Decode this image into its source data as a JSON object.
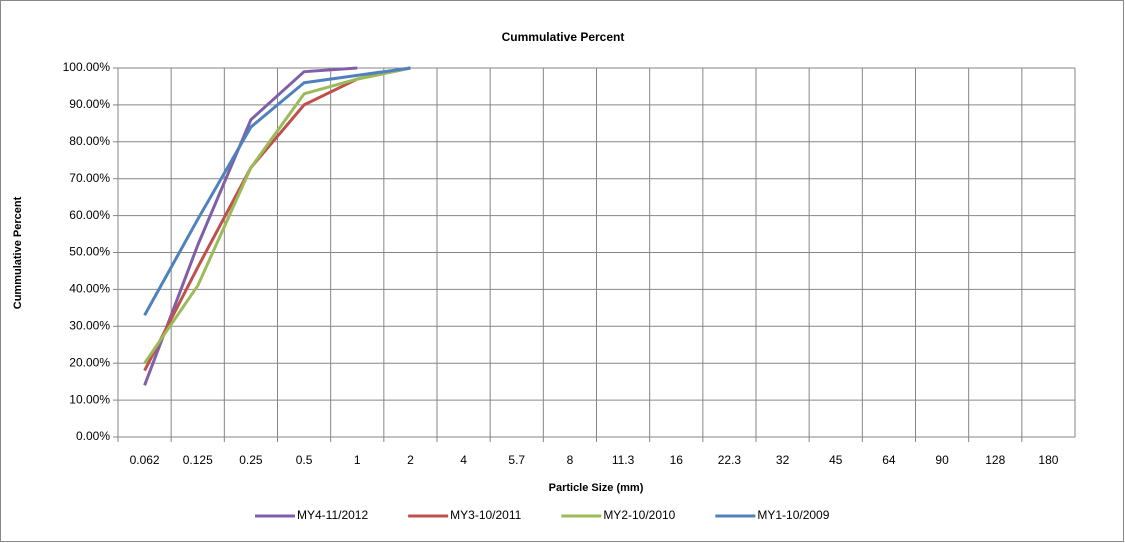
{
  "chart_data": {
    "type": "line",
    "title": "Cummulative Percent",
    "x_label": "Particle Size (mm)",
    "y_label": "Cummulative Percent",
    "categories": [
      "0.062",
      "0.125",
      "0.25",
      "0.5",
      "1",
      "2",
      "4",
      "5.7",
      "8",
      "11.3",
      "16",
      "22.3",
      "32",
      "45",
      "64",
      "90",
      "128",
      "180"
    ],
    "series": [
      {
        "name": "MY4-11/2012",
        "color": "#7f5fa8",
        "values": [
          14,
          52,
          86,
          99,
          100,
          null,
          null,
          null,
          null,
          null,
          null,
          null,
          null,
          null,
          null,
          null,
          null,
          null
        ]
      },
      {
        "name": "MY3-10/2011",
        "color": "#c0504d",
        "values": [
          18,
          46,
          73,
          90,
          97,
          100,
          null,
          null,
          null,
          null,
          null,
          null,
          null,
          null,
          null,
          null,
          null,
          null
        ]
      },
      {
        "name": "MY2-10/2010",
        "color": "#9bbb59",
        "values": [
          20,
          41,
          73,
          93,
          97,
          100,
          null,
          null,
          null,
          null,
          null,
          null,
          null,
          null,
          null,
          null,
          null,
          null
        ]
      },
      {
        "name": "MY1-10/2009",
        "color": "#4f81bd",
        "values": [
          33,
          59,
          84,
          96,
          98,
          100,
          null,
          null,
          null,
          null,
          null,
          null,
          null,
          null,
          null,
          null,
          null,
          null
        ]
      }
    ],
    "ylim": [
      0,
      100
    ],
    "yticks": [
      {
        "value": 0,
        "label": "0.00%"
      },
      {
        "value": 10,
        "label": "10.00%"
      },
      {
        "value": 20,
        "label": "20.00%"
      },
      {
        "value": 30,
        "label": "30.00%"
      },
      {
        "value": 40,
        "label": "40.00%"
      },
      {
        "value": 50,
        "label": "50.00%"
      },
      {
        "value": 60,
        "label": "60.00%"
      },
      {
        "value": 70,
        "label": "70.00%"
      },
      {
        "value": 80,
        "label": "80.00%"
      },
      {
        "value": 90,
        "label": "90.00%"
      },
      {
        "value": 100,
        "label": "100.00%"
      }
    ],
    "grid": true,
    "legend": "bottom"
  }
}
